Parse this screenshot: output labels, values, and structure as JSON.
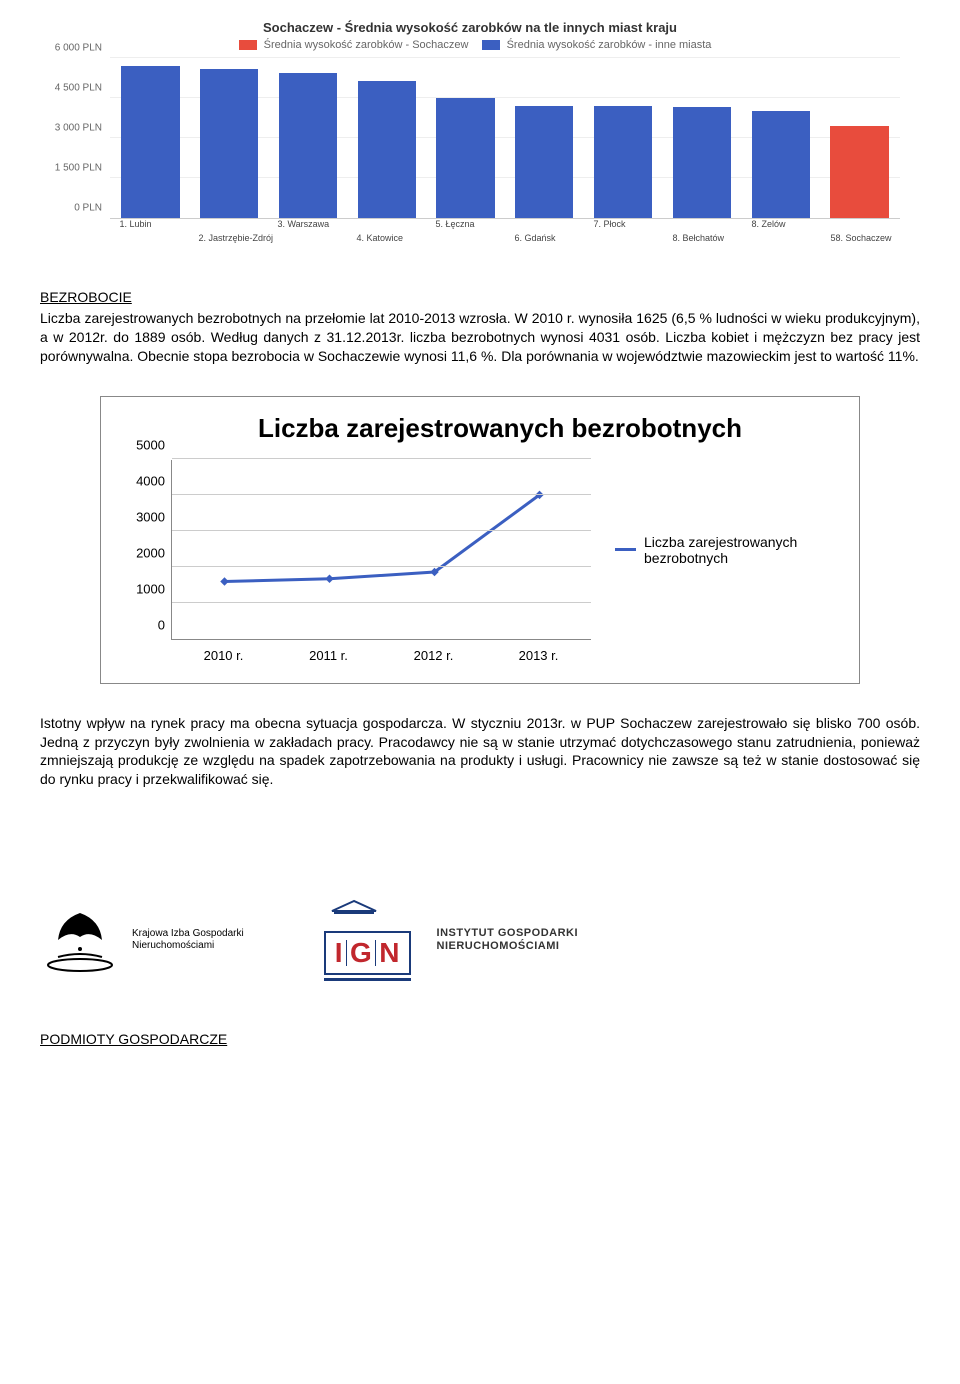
{
  "chart1": {
    "type": "bar",
    "title": "Sochaczew - Średnia wysokość zarobków na tle innych miast kraju",
    "legend": [
      {
        "color": "#e84c3d",
        "label": "Średnia wysokość zarobków - Sochaczew"
      },
      {
        "color": "#3b5fc1",
        "label": "Średnia wysokość zarobków - inne miasta"
      }
    ],
    "ymax": 6000,
    "yticks": [
      {
        "v": 0,
        "label": "0 PLN"
      },
      {
        "v": 1500,
        "label": "1 500 PLN"
      },
      {
        "v": 3000,
        "label": "3 000 PLN"
      },
      {
        "v": 4500,
        "label": "4 500 PLN"
      },
      {
        "v": 6000,
        "label": "6 000 PLN"
      }
    ],
    "bars": [
      {
        "value": 5700,
        "color": "#3b5fc1"
      },
      {
        "value": 5600,
        "color": "#3b5fc1"
      },
      {
        "value": 5450,
        "color": "#3b5fc1"
      },
      {
        "value": 5150,
        "color": "#3b5fc1"
      },
      {
        "value": 4500,
        "color": "#3b5fc1"
      },
      {
        "value": 4200,
        "color": "#3b5fc1"
      },
      {
        "value": 4200,
        "color": "#3b5fc1"
      },
      {
        "value": 4150,
        "color": "#3b5fc1"
      },
      {
        "value": 4000,
        "color": "#3b5fc1"
      },
      {
        "value": 3450,
        "color": "#e84c3d"
      }
    ],
    "xlabels": [
      {
        "text": "1. Lubin",
        "row": 0
      },
      {
        "text": "2. Jastrzębie-Zdrój",
        "row": 1
      },
      {
        "text": "3. Warszawa",
        "row": 0
      },
      {
        "text": "4. Katowice",
        "row": 1
      },
      {
        "text": "5. Łęczna",
        "row": 0
      },
      {
        "text": "6. Gdańsk",
        "row": 1
      },
      {
        "text": "7. Płock",
        "row": 0
      },
      {
        "text": "8. Bełchatów",
        "row": 1
      },
      {
        "text": "8. Zelów",
        "row": 0
      },
      {
        "text": "58. Sochaczew",
        "row": 1
      }
    ],
    "grid_color": "#eeeeee",
    "background_color": "#ffffff"
  },
  "section1_heading": "BEZROBOCIE",
  "paragraph1": "Liczba zarejestrowanych bezrobotnych na przełomie lat 2010-2013 wzrosła.  W 2010 r. wynosiła 1625 (6,5 % ludności w wieku produkcyjnym), a w 2012r.  do 1889 osób. Według danych z 31.12.2013r. liczba bezrobotnych wynosi 4031 osób. Liczba kobiet i mężczyzn bez pracy jest porównywalna. Obecnie stopa bezrobocia w Sochaczewie wynosi 11,6 %. Dla porównania w województwie mazowieckim jest to wartość 11%.",
  "chart2": {
    "type": "line",
    "title": "Liczba zarejestrowanych bezrobotnych",
    "ymax": 5000,
    "yticks": [
      {
        "v": 0,
        "label": "0"
      },
      {
        "v": 1000,
        "label": "1000"
      },
      {
        "v": 2000,
        "label": "2000"
      },
      {
        "v": 3000,
        "label": "3000"
      },
      {
        "v": 4000,
        "label": "4000"
      },
      {
        "v": 5000,
        "label": "5000"
      }
    ],
    "xlabels": [
      "2010 r.",
      "2011 r.",
      "2012 r.",
      "2013 r."
    ],
    "series": {
      "label": "Liczba zarejestrowanych bezrobotnych",
      "color": "#3b5fc1",
      "points": [
        {
          "x": 0,
          "y": 1625
        },
        {
          "x": 1,
          "y": 1700
        },
        {
          "x": 2,
          "y": 1889
        },
        {
          "x": 3,
          "y": 4031
        }
      ]
    },
    "line_width": 3,
    "marker_size": 6,
    "grid_color": "#cccccc",
    "background_color": "#ffffff"
  },
  "paragraph2": "Istotny wpływ na rynek pracy ma obecna sytuacja gospodarcza. W styczniu  2013r. w PUP Sochaczew zarejestrowało się blisko 700 osób. Jedną z przyczyn były zwolnienia w zakładach pracy. Pracodawcy nie są w stanie utrzymać dotychczasowego stanu zatrudnienia, ponieważ zmniejszają produkcję ze względu na spadek zapotrzebowania na produkty i usługi. Pracownicy nie zawsze są też w stanie dostosować się do rynku pracy i przekwalifikować się.",
  "logos": {
    "kig_line1": "Krajowa Izba Gospodarki",
    "kig_line2": "Nieruchomościami",
    "ign_letters": [
      "I",
      "G",
      "N"
    ],
    "ign_line1": "INSTYTUT GOSPODARKI",
    "ign_line2": "NIERUCHOMOŚCIAMI"
  },
  "footer_heading": "PODMIOTY GOSPODARCZE",
  "colors": {
    "blue": "#3b5fc1",
    "red": "#e84c3d",
    "navy": "#1a3a7a",
    "darkred": "#c1272d"
  }
}
